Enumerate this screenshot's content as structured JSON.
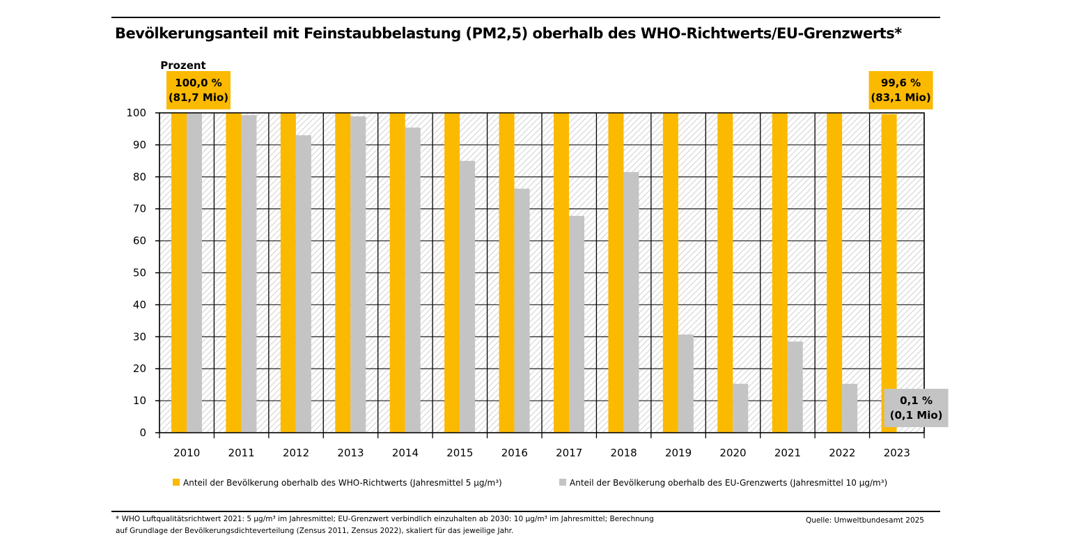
{
  "chart_data": {
    "type": "bar",
    "title": "Bevölkerungsanteil mit Feinstaubbelastung (PM2,5) oberhalb des WHO-Richtwerts/EU-Grenzwerts*",
    "ylabel": "Prozent",
    "xlabel": "",
    "ylim": [
      0,
      100
    ],
    "yticks": [
      0,
      10,
      20,
      30,
      40,
      50,
      60,
      70,
      80,
      90,
      100
    ],
    "grid": true,
    "legend_position": "bottom",
    "categories": [
      "2010",
      "2011",
      "2012",
      "2013",
      "2014",
      "2015",
      "2016",
      "2017",
      "2018",
      "2019",
      "2020",
      "2021",
      "2022",
      "2023"
    ],
    "series": [
      {
        "name": "Anteil der Bevölkerung oberhalb des WHO-Richtwerts (Jahresmittel 5 µg/m³)",
        "color": "#fbb900",
        "values": [
          100,
          100,
          100,
          100,
          100,
          100,
          100,
          100,
          100,
          100,
          100,
          100,
          100,
          99.6
        ]
      },
      {
        "name": "Anteil der Bevölkerung oberhalb des EU-Grenzwerts (Jahresmittel 10 µg/m³)",
        "color": "#c4c4c4",
        "values": [
          100,
          99.3,
          93.0,
          98.9,
          95.4,
          85.0,
          76.3,
          67.8,
          81.5,
          30.7,
          15.3,
          28.5,
          15.3,
          0.1
        ]
      }
    ],
    "annotations": [
      {
        "category": "2010",
        "series": 0,
        "lines": [
          "100,0 %",
          "(81,7 Mio)"
        ],
        "color": "#fbb900"
      },
      {
        "category": "2023",
        "series": 0,
        "lines": [
          "99,6 %",
          "(83,1 Mio)"
        ],
        "color": "#fbb900"
      },
      {
        "category": "2023",
        "series": 1,
        "lines": [
          "0,1 %",
          "(0,1 Mio)"
        ],
        "color": "#c4c4c4"
      }
    ]
  },
  "footnote": {
    "line1": "* WHO Luftqualitätsrichtwert 2021: 5 µg/m³ im Jahresmittel; EU-Grenzwert verbindlich einzuhalten ab 2030: 10 µg/m³ im Jahresmittel; Berechnung",
    "line2": "auf Grundlage der Bevölkerungsdichteverteilung (Zensus 2011, Zensus 2022), skaliert für das jeweilige Jahr.",
    "source": "Quelle: Umweltbundesamt 2025"
  }
}
